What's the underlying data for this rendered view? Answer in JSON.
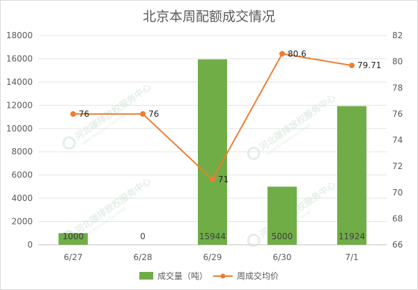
{
  "chart_data": {
    "type": "bar",
    "title": "北京本周配额成交情况",
    "categories": [
      "6/27",
      "6/28",
      "6/29",
      "6/30",
      "7/1"
    ],
    "series": [
      {
        "name": "成交量（吨）",
        "type": "bar",
        "axis": "left",
        "values": [
          1000,
          0,
          15944,
          5000,
          11924
        ],
        "labels": [
          "1000",
          "0",
          "15944",
          "5000",
          "11924"
        ],
        "color": "#70ad47"
      },
      {
        "name": "周成交均价",
        "type": "line",
        "axis": "right",
        "values": [
          76,
          76,
          71,
          80.6,
          79.71
        ],
        "labels": [
          "76",
          "76",
          "71",
          "80.6",
          "79.71"
        ],
        "color": "#ed7d31"
      }
    ],
    "y_left": {
      "min": 0,
      "max": 18000,
      "step": 2000,
      "ticks": [
        "0",
        "2000",
        "4000",
        "6000",
        "8000",
        "10000",
        "12000",
        "14000",
        "16000",
        "18000"
      ]
    },
    "y_right": {
      "min": 66,
      "max": 82,
      "step": 2,
      "ticks": [
        "66",
        "68",
        "70",
        "72",
        "74",
        "76",
        "78",
        "80",
        "82"
      ]
    },
    "grid": true,
    "legend_position": "bottom",
    "watermark": {
      "text": "河北碳排放权服务中心",
      "subtext": "Hebei Emission Exchange"
    }
  }
}
